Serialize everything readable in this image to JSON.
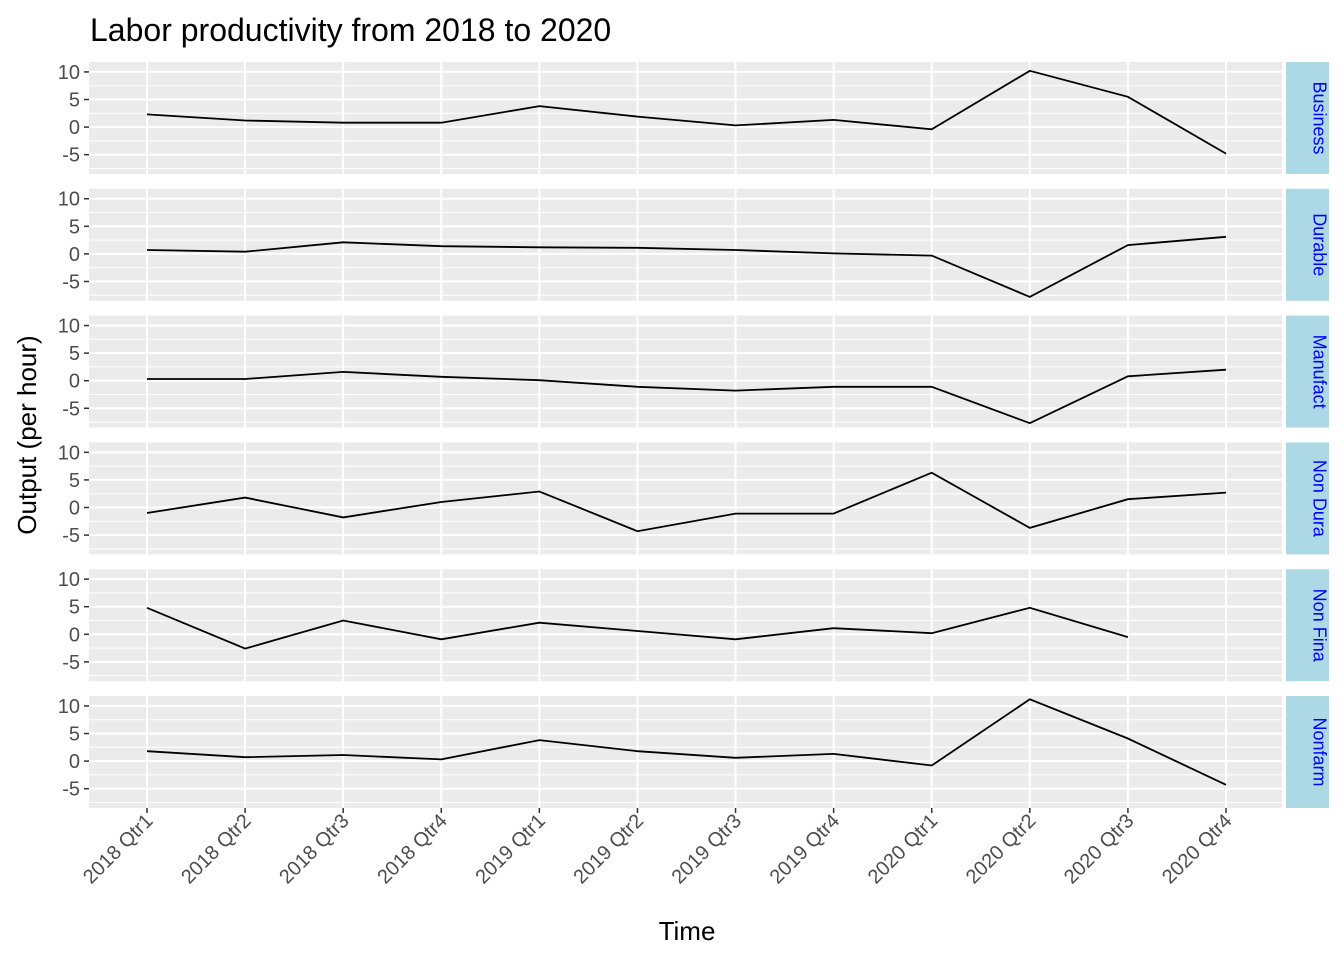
{
  "chart_data": {
    "type": "line",
    "title": "Labor productivity from 2018 to 2020",
    "xlabel": "Time",
    "ylabel": "Output (per hour)",
    "categories": [
      "2018 Qtr1",
      "2018 Qtr2",
      "2018 Qtr3",
      "2018 Qtr4",
      "2019 Qtr1",
      "2019 Qtr2",
      "2019 Qtr3",
      "2019 Qtr4",
      "2020 Qtr1",
      "2020 Qtr2",
      "2020 Qtr3",
      "2020 Qtr4"
    ],
    "y_ticks": [
      -5,
      0,
      5,
      10
    ],
    "ylim": [
      -8.5,
      11.8
    ],
    "grid": true,
    "facet_strip_position": "right",
    "colors": {
      "panel_background": "#ebebeb",
      "grid": "#ffffff",
      "line": "#000000",
      "strip_background": "#add8e6",
      "strip_text": "#0000ff",
      "tick_text": "#4d4d4d",
      "tick_mark": "#333333"
    },
    "panels": [
      {
        "label": "Business",
        "values": [
          2.3,
          1.2,
          0.8,
          0.8,
          3.8,
          1.9,
          0.3,
          1.3,
          -0.4,
          10.2,
          5.5,
          -4.8
        ]
      },
      {
        "label": "Durable",
        "values": [
          0.7,
          0.4,
          2.1,
          1.4,
          1.2,
          1.1,
          0.7,
          0.1,
          -0.3,
          -7.8,
          1.6,
          3.1
        ]
      },
      {
        "label": "Manufact",
        "values": [
          0.3,
          0.3,
          1.6,
          0.7,
          0.1,
          -1.1,
          -1.8,
          -1.1,
          -1.1,
          -7.7,
          0.8,
          2.0
        ]
      },
      {
        "label": "Non Dura",
        "values": [
          -1.0,
          1.8,
          -1.8,
          1.0,
          2.9,
          -4.3,
          -1.1,
          -1.1,
          6.3,
          -3.7,
          1.5,
          2.7
        ]
      },
      {
        "label": "Non Fina",
        "values": [
          4.8,
          -2.6,
          2.5,
          -0.9,
          2.1,
          0.6,
          -0.9,
          1.1,
          0.2,
          4.8,
          -0.5,
          null
        ]
      },
      {
        "label": "Nonfarm",
        "values": [
          1.8,
          0.7,
          1.1,
          0.3,
          3.8,
          1.8,
          0.6,
          1.3,
          -0.8,
          11.2,
          4.1,
          -4.3
        ]
      }
    ]
  }
}
